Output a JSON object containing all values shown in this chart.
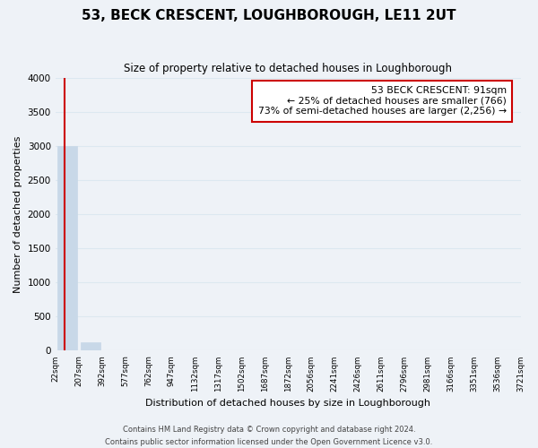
{
  "title": "53, BECK CRESCENT, LOUGHBOROUGH, LE11 2UT",
  "subtitle": "Size of property relative to detached houses in Loughborough",
  "xlabel": "Distribution of detached houses by size in Loughborough",
  "ylabel": "Number of detached properties",
  "bin_labels": [
    "22sqm",
    "207sqm",
    "392sqm",
    "577sqm",
    "762sqm",
    "947sqm",
    "1132sqm",
    "1317sqm",
    "1502sqm",
    "1687sqm",
    "1872sqm",
    "2056sqm",
    "2241sqm",
    "2426sqm",
    "2611sqm",
    "2796sqm",
    "2981sqm",
    "3166sqm",
    "3351sqm",
    "3536sqm",
    "3721sqm"
  ],
  "bar_heights": [
    3000,
    120,
    0,
    0,
    0,
    0,
    0,
    0,
    0,
    0,
    0,
    0,
    0,
    0,
    0,
    0,
    0,
    0,
    0,
    0
  ],
  "bar_color": "#c8d8e8",
  "ylim": [
    0,
    4000
  ],
  "yticks": [
    0,
    500,
    1000,
    1500,
    2000,
    2500,
    3000,
    3500,
    4000
  ],
  "property_sqm": 91,
  "bin_min": 22,
  "bin_max": 207,
  "annotation_title": "53 BECK CRESCENT: 91sqm",
  "annotation_line1": "← 25% of detached houses are smaller (766)",
  "annotation_line2": "73% of semi-detached houses are larger (2,256) →",
  "annotation_box_color": "#ffffff",
  "annotation_box_edge_color": "#cc0000",
  "property_line_color": "#cc0000",
  "grid_color": "#dce8f0",
  "background_color": "#eef2f7",
  "footer_line1": "Contains HM Land Registry data © Crown copyright and database right 2024.",
  "footer_line2": "Contains public sector information licensed under the Open Government Licence v3.0."
}
